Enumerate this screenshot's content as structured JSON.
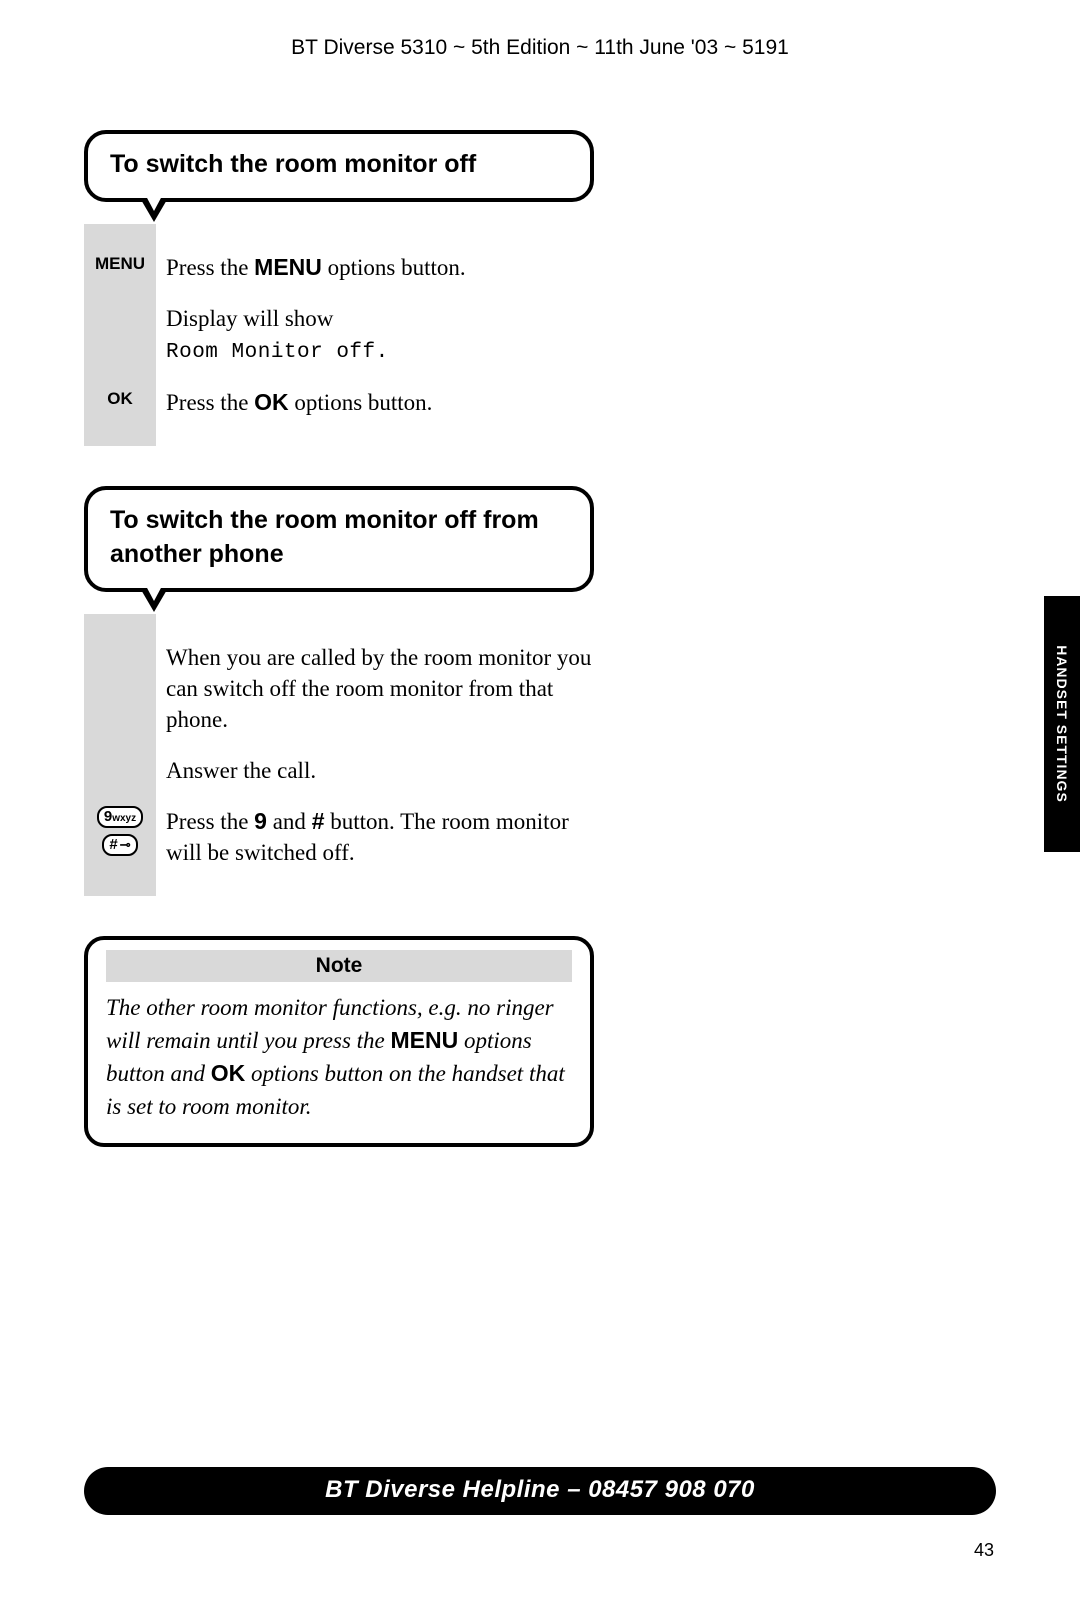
{
  "header": "BT Diverse 5310 ~ 5th Edition ~ 11th June '03 ~ 5191",
  "section1": {
    "title": "To switch the room monitor off",
    "steps": [
      {
        "label": "MENU",
        "text_pre": "Press the ",
        "bold": "MENU",
        "text_post": " options button."
      },
      {
        "label": "",
        "text_pre": "Display will show",
        "lcd": "Room Monitor off."
      },
      {
        "label": "OK",
        "text_pre": "Press the ",
        "bold": "OK",
        "text_post": " options button."
      }
    ]
  },
  "section2": {
    "title": "To switch the room monitor off from another phone",
    "intro": "When you are called by the room monitor you can switch off the room monitor from that phone.",
    "answer": "Answer the call.",
    "press_pre": "Press the ",
    "press_bold1": "9",
    "press_mid": " and ",
    "press_bold2": "#",
    "press_post": " button. The room monitor will be switched off.",
    "key9_main": "9",
    "key9_sub": "wxyz",
    "keyhash_main": "#",
    "keyhash_sym": "⊸"
  },
  "note": {
    "title": "Note",
    "body_pre": "The other room monitor functions, e.g. no ringer will remain until you press the ",
    "bold1": "MENU",
    "body_mid": " options button and ",
    "bold2": "OK",
    "body_post": " options button on the handset that is set to room monitor."
  },
  "side_tab": "HANDSET SETTINGS",
  "footer": "BT Diverse Helpline – 08457 908 070",
  "page_number": "43"
}
